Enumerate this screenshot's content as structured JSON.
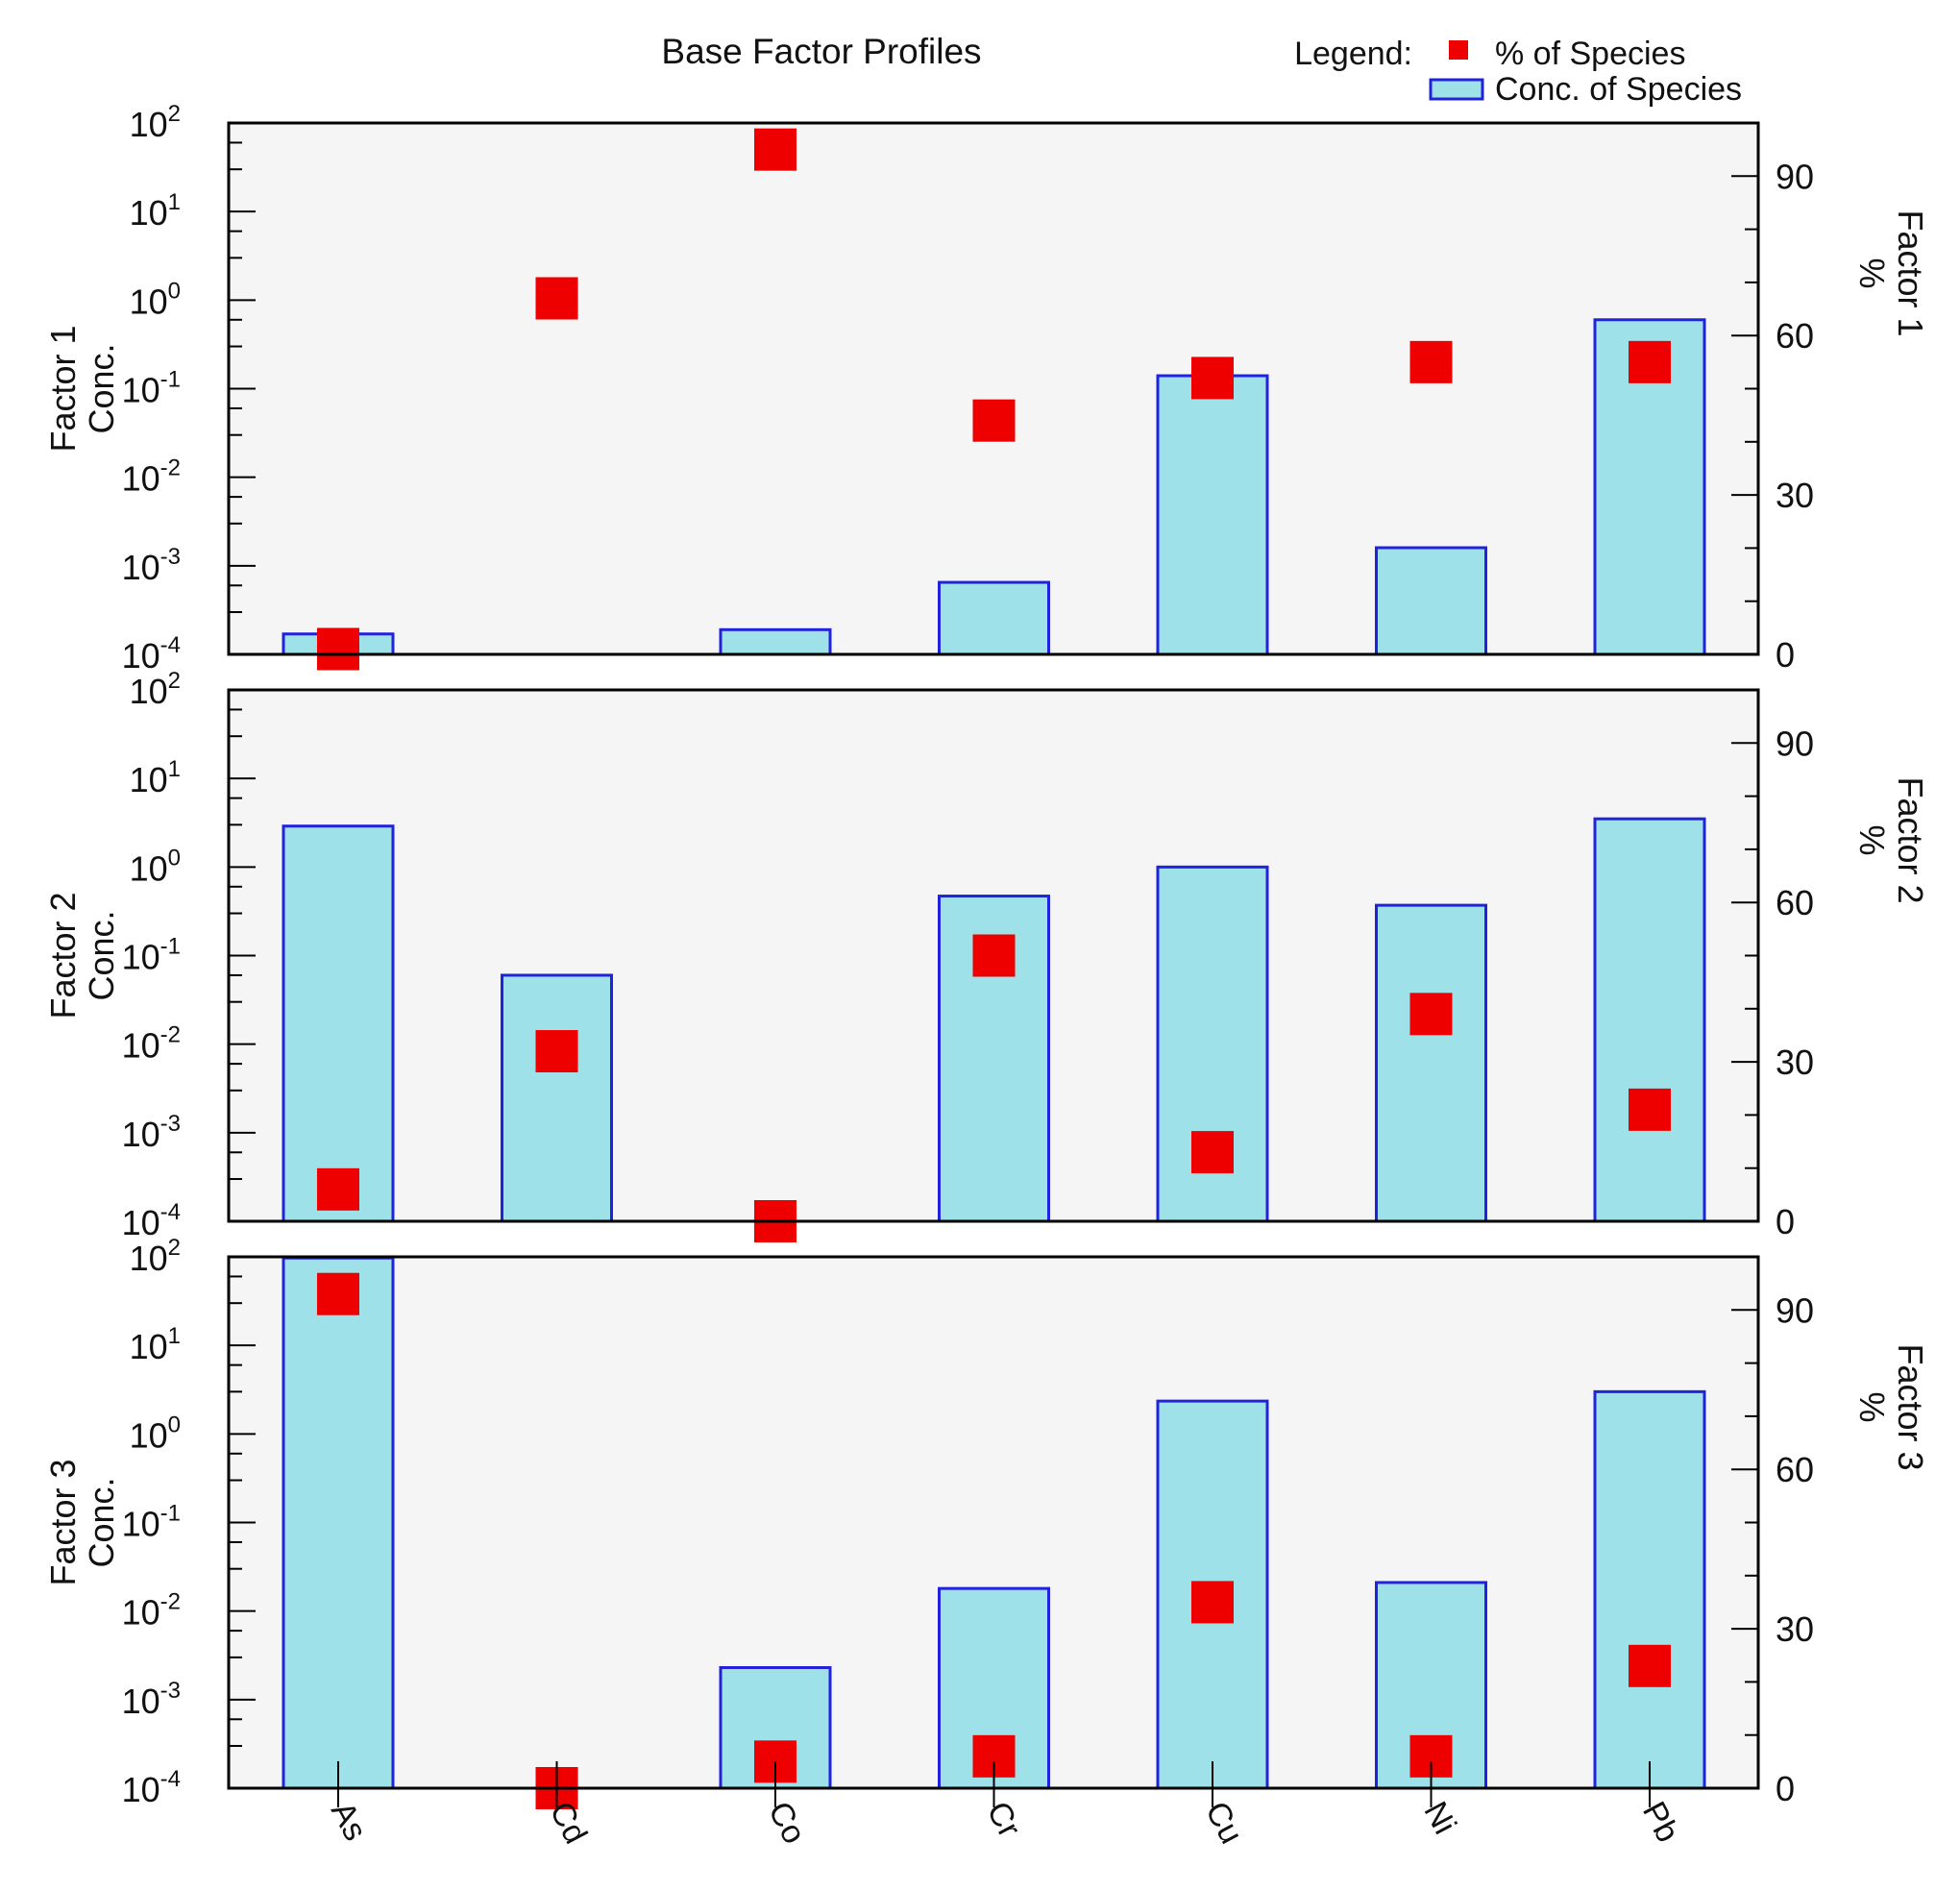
{
  "chart_data": {
    "type": "bar",
    "title": "Base Factor Profiles",
    "legend": {
      "label": "Legend:",
      "entries": [
        "% of Species",
        "Conc. of Species"
      ],
      "placement": "top-right"
    },
    "categories": [
      "As",
      "Cd",
      "Co",
      "Cr",
      "Cu",
      "Ni",
      "Pb"
    ],
    "left_axis": {
      "scale": "log",
      "range": [
        0.0001,
        100
      ],
      "tick_base": "10",
      "tick_exponents": [
        "-4",
        "-3",
        "-2",
        "-1",
        "0",
        "1",
        "2"
      ]
    },
    "right_axis": {
      "range": [
        0,
        100
      ],
      "ticks": [
        "0",
        "30",
        "60",
        "90"
      ]
    },
    "panels": [
      {
        "name": "Factor 1",
        "ylabel_lines": [
          "Factor 1",
          "Conc."
        ],
        "y2label_lines": [
          "Factor 1",
          "%"
        ],
        "conc": [
          0.00017,
          null,
          0.00019,
          0.00065,
          0.14,
          0.0016,
          0.6
        ],
        "percent": [
          1,
          67,
          95,
          44,
          52,
          55,
          55
        ]
      },
      {
        "name": "Factor 2",
        "ylabel_lines": [
          "Factor 2",
          "Conc."
        ],
        "y2label_lines": [
          "Factor 2",
          "%"
        ],
        "conc": [
          2.9,
          0.06,
          null,
          0.47,
          1.0,
          0.37,
          3.5
        ],
        "percent": [
          6,
          32,
          0,
          50,
          13,
          39,
          21
        ]
      },
      {
        "name": "Factor 3",
        "ylabel_lines": [
          "Factor 3",
          "Conc."
        ],
        "y2label_lines": [
          "Factor 3",
          "%"
        ],
        "conc": [
          97,
          null,
          0.0023,
          0.018,
          2.35,
          0.021,
          3.0
        ],
        "percent": [
          93,
          0,
          5,
          6,
          35,
          6,
          23
        ]
      }
    ],
    "colors": {
      "bar_fill": "#9fe1e9",
      "bar_stroke": "#2222dd",
      "marker": "#ee0000",
      "plot_background": "#f5f5f5",
      "axis": "#000000"
    }
  }
}
